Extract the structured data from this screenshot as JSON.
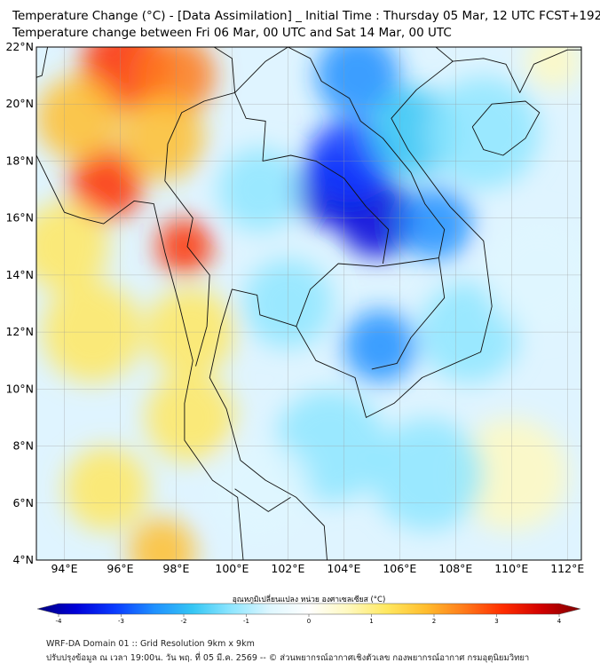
{
  "title_line1": "Temperature Change (°C) - [Data Assimilation] _ Initial Time : Thursday 05 Mar, 12 UTC FCST+192",
  "title_line2": "Temperature change between Fri 06 Mar, 00 UTC and Sat 14 Mar, 00 UTC",
  "lat_labels": [
    "22°N",
    "20°N",
    "18°N",
    "16°N",
    "14°N",
    "12°N",
    "10°N",
    "8°N",
    "6°N",
    "4°N"
  ],
  "lon_labels": [
    "94°E",
    "96°E",
    "98°E",
    "100°E",
    "102°E",
    "104°E",
    "106°E",
    "108°E",
    "110°E",
    "112°E"
  ],
  "lat_values": [
    22,
    20,
    18,
    16,
    14,
    12,
    10,
    8,
    6,
    4
  ],
  "lon_values": [
    94,
    96,
    98,
    100,
    102,
    104,
    106,
    108,
    110,
    112
  ],
  "map_extent": {
    "lon_min": 93,
    "lon_max": 112.5,
    "lat_min": 4,
    "lat_max": 22
  },
  "colorbar_title": "อุณหภูมิเปลี่ยนแปลง หน่วย องศาเซลเซียส (°C)",
  "colorbar_range": [
    -4,
    4
  ],
  "colorbar_tick_values": [
    -4,
    -3,
    -2,
    -1,
    0,
    1,
    2,
    3,
    4
  ],
  "colorbar_ticks": [
    "-4",
    "-3",
    "-2",
    "-1",
    "0",
    "1",
    "2",
    "3",
    "4"
  ],
  "footer_line1": "WRF-DA Domain 01 :: Grid Resolution 9km x 9km",
  "footer_line2": "ปรับปรุงข้อมูล ณ เวลา 19:00น. วัน พฤ. ที่ 05 มี.ค. 2569 -- © ส่วนพยากรณ์อากาศเชิงตัวเลข กองพยากรณ์อากาศ กรมอุตุนิยมวิทยา",
  "colors": {
    "scale": [
      "#00007f",
      "#0000d8",
      "#0a3bff",
      "#1f8fff",
      "#35c6f4",
      "#8ee6ff",
      "#dff7ff",
      "#ffffff",
      "#fff9c0",
      "#ffe860",
      "#ffbe2e",
      "#ff7a1a",
      "#ff2d00",
      "#d00000",
      "#7f0000"
    ],
    "warm_strong": "#ff5a10",
    "cool_strong": "#0a1fd8"
  },
  "field_blobs": [
    {
      "lon": 96.2,
      "lat": 21.3,
      "val": 2.6,
      "r": 1.6
    },
    {
      "lon": 95.5,
      "lat": 17.2,
      "val": 3.0,
      "r": 1.3
    },
    {
      "lon": 98.0,
      "lat": 21.0,
      "val": 2.3,
      "r": 1.4
    },
    {
      "lon": 97.5,
      "lat": 18.8,
      "val": 1.8,
      "r": 1.5
    },
    {
      "lon": 98.3,
      "lat": 15.0,
      "val": 2.8,
      "r": 1.0
    },
    {
      "lon": 94.5,
      "lat": 19.5,
      "val": 1.6,
      "r": 1.5
    },
    {
      "lon": 94.0,
      "lat": 15.0,
      "val": 1.2,
      "r": 1.6
    },
    {
      "lon": 95.0,
      "lat": 12.0,
      "val": 1.0,
      "r": 1.8
    },
    {
      "lon": 98.5,
      "lat": 12.0,
      "val": 1.2,
      "r": 1.6
    },
    {
      "lon": 98.5,
      "lat": 9.0,
      "val": 0.9,
      "r": 1.6
    },
    {
      "lon": 95.5,
      "lat": 6.5,
      "val": 1.2,
      "r": 1.5
    },
    {
      "lon": 97.5,
      "lat": 4.3,
      "val": 1.8,
      "r": 1.2
    },
    {
      "lon": 110.0,
      "lat": 7.0,
      "val": 0.6,
      "r": 2.0
    },
    {
      "lon": 111.5,
      "lat": 21.5,
      "val": 0.8,
      "r": 1.0
    },
    {
      "lon": 103.5,
      "lat": 17.0,
      "val": -3.6,
      "r": 1.3
    },
    {
      "lon": 105.2,
      "lat": 16.0,
      "val": -3.4,
      "r": 1.4
    },
    {
      "lon": 104.2,
      "lat": 18.0,
      "val": -2.6,
      "r": 1.5
    },
    {
      "lon": 104.5,
      "lat": 21.0,
      "val": -2.4,
      "r": 1.5
    },
    {
      "lon": 106.5,
      "lat": 19.0,
      "val": -2.0,
      "r": 1.6
    },
    {
      "lon": 107.3,
      "lat": 15.8,
      "val": -2.2,
      "r": 1.3
    },
    {
      "lon": 105.3,
      "lat": 11.5,
      "val": -2.2,
      "r": 1.3
    },
    {
      "lon": 102.0,
      "lat": 13.0,
      "val": -1.4,
      "r": 1.6
    },
    {
      "lon": 108.5,
      "lat": 12.0,
      "val": -1.4,
      "r": 1.8
    },
    {
      "lon": 109.0,
      "lat": 19.0,
      "val": -1.0,
      "r": 2.0
    },
    {
      "lon": 101.0,
      "lat": 17.0,
      "val": -1.2,
      "r": 1.5
    },
    {
      "lon": 103.5,
      "lat": 8.0,
      "val": -1.0,
      "r": 2.0
    },
    {
      "lon": 101.0,
      "lat": 6.5,
      "val": -0.8,
      "r": 1.8
    },
    {
      "lon": 107.0,
      "lat": 7.0,
      "val": -0.9,
      "r": 2.0
    },
    {
      "lon": 111.0,
      "lat": 14.0,
      "val": -0.5,
      "r": 2.0
    }
  ],
  "coastlines": [
    {
      "name": "mainland-coast",
      "points": [
        [
          93.0,
          18.2
        ],
        [
          94.0,
          16.2
        ],
        [
          94.6,
          16.0
        ],
        [
          95.4,
          15.8
        ],
        [
          96.5,
          16.6
        ],
        [
          97.2,
          16.5
        ],
        [
          97.6,
          14.8
        ],
        [
          98.1,
          13.0
        ],
        [
          98.6,
          11.0
        ],
        [
          98.3,
          9.5
        ],
        [
          98.3,
          8.2
        ],
        [
          99.3,
          6.8
        ],
        [
          100.2,
          6.2
        ],
        [
          100.4,
          4.0
        ]
      ]
    },
    {
      "name": "gulf-coast",
      "points": [
        [
          103.4,
          4.0
        ],
        [
          103.3,
          5.2
        ],
        [
          102.3,
          6.2
        ],
        [
          101.2,
          6.8
        ],
        [
          100.3,
          7.5
        ],
        [
          99.8,
          9.3
        ],
        [
          99.2,
          10.4
        ],
        [
          99.6,
          12.2
        ],
        [
          100.0,
          13.5
        ],
        [
          100.9,
          13.3
        ],
        [
          101.0,
          12.6
        ],
        [
          102.3,
          12.2
        ],
        [
          103.0,
          11.0
        ],
        [
          104.4,
          10.4
        ],
        [
          104.8,
          9.0
        ],
        [
          105.8,
          9.5
        ],
        [
          106.8,
          10.4
        ],
        [
          108.9,
          11.3
        ],
        [
          109.3,
          12.9
        ],
        [
          109.0,
          15.2
        ],
        [
          107.8,
          16.4
        ],
        [
          106.3,
          18.4
        ],
        [
          105.7,
          19.5
        ],
        [
          106.6,
          20.5
        ],
        [
          107.9,
          21.5
        ],
        [
          109.0,
          21.6
        ],
        [
          109.8,
          21.4
        ],
        [
          110.3,
          20.4
        ],
        [
          110.8,
          21.4
        ],
        [
          112.0,
          21.9
        ],
        [
          112.5,
          21.9
        ]
      ]
    },
    {
      "name": "hainan",
      "points": [
        [
          108.6,
          19.2
        ],
        [
          109.0,
          18.4
        ],
        [
          109.7,
          18.2
        ],
        [
          110.5,
          18.8
        ],
        [
          111.0,
          19.7
        ],
        [
          110.5,
          20.1
        ],
        [
          109.3,
          20.0
        ],
        [
          108.6,
          19.2
        ]
      ]
    },
    {
      "name": "andaman-1",
      "points": [
        [
          92.8,
          13.3
        ],
        [
          93.0,
          12.2
        ],
        [
          92.7,
          11.4
        ]
      ]
    },
    {
      "name": "cambodia-border",
      "points": [
        [
          102.3,
          12.2
        ],
        [
          102.8,
          13.5
        ],
        [
          103.8,
          14.4
        ],
        [
          105.2,
          14.3
        ],
        [
          106.0,
          14.4
        ],
        [
          107.4,
          14.6
        ],
        [
          107.6,
          13.2
        ],
        [
          106.4,
          11.8
        ],
        [
          105.9,
          10.9
        ],
        [
          105.0,
          10.7
        ]
      ]
    },
    {
      "name": "laos-border",
      "points": [
        [
          100.1,
          20.4
        ],
        [
          101.2,
          21.5
        ],
        [
          102.0,
          22.0
        ],
        [
          102.8,
          21.6
        ],
        [
          103.2,
          20.8
        ],
        [
          104.2,
          20.2
        ],
        [
          104.6,
          19.4
        ],
        [
          105.4,
          18.8
        ],
        [
          106.4,
          17.6
        ],
        [
          106.9,
          16.5
        ],
        [
          107.6,
          15.6
        ],
        [
          107.4,
          14.6
        ]
      ]
    },
    {
      "name": "thai-laos-border",
      "points": [
        [
          100.1,
          20.4
        ],
        [
          100.5,
          19.5
        ],
        [
          101.2,
          19.4
        ],
        [
          101.1,
          18.0
        ],
        [
          102.1,
          18.2
        ],
        [
          103.0,
          18.0
        ],
        [
          104.0,
          17.4
        ],
        [
          104.8,
          16.4
        ],
        [
          105.6,
          15.6
        ],
        [
          105.4,
          14.4
        ]
      ]
    },
    {
      "name": "thai-myanmar-border",
      "points": [
        [
          100.1,
          20.4
        ],
        [
          99.0,
          20.1
        ],
        [
          98.2,
          19.7
        ],
        [
          97.7,
          18.6
        ],
        [
          97.6,
          17.3
        ],
        [
          98.6,
          16.0
        ],
        [
          98.4,
          15.0
        ],
        [
          99.2,
          14.0
        ],
        [
          99.1,
          12.2
        ],
        [
          98.7,
          10.8
        ]
      ]
    },
    {
      "name": "myanmar-china-border",
      "points": [
        [
          97.4,
          22.0
        ],
        [
          98.4,
          22.5
        ],
        [
          99.2,
          22.1
        ],
        [
          100.0,
          21.6
        ],
        [
          100.1,
          20.4
        ]
      ]
    },
    {
      "name": "vietnam-china-border",
      "points": [
        [
          102.0,
          22.0
        ],
        [
          103.1,
          22.4
        ],
        [
          104.6,
          22.8
        ],
        [
          106.2,
          22.9
        ],
        [
          107.9,
          21.5
        ]
      ]
    },
    {
      "name": "malay-border",
      "points": [
        [
          100.1,
          6.5
        ],
        [
          101.3,
          5.7
        ],
        [
          102.1,
          6.2
        ]
      ]
    },
    {
      "name": "india-myanmar-border",
      "points": [
        [
          93.4,
          22.0
        ],
        [
          93.2,
          21.0
        ],
        [
          92.6,
          20.8
        ]
      ]
    }
  ]
}
